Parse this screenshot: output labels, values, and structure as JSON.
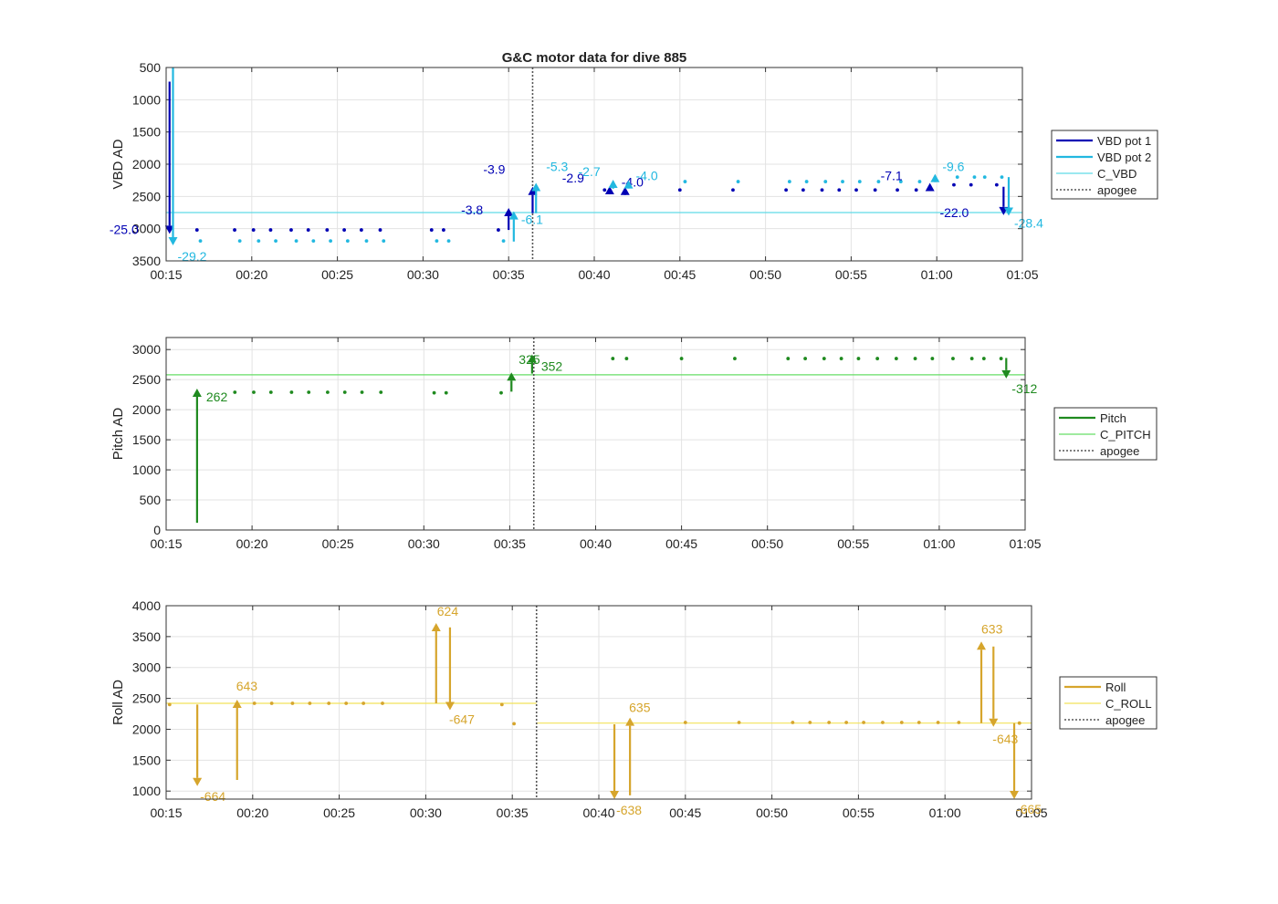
{
  "title": "G&C motor data for dive 885",
  "colors": {
    "vbd1": "#0000b4",
    "vbd2": "#22b8e0",
    "c_vbd": "#5fd9e6",
    "pitch": "#1f8a1f",
    "c_pitch": "#66dd66",
    "roll": "#d6a52c",
    "c_roll": "#f2e25a",
    "apogee": "#555555",
    "grid": "#e3e3e3"
  },
  "chart_data": [
    {
      "type": "line",
      "title": "G&C motor data for dive 885",
      "ylabel": "VBD AD",
      "xlabel": "",
      "xlim": [
        "00:15",
        "01:05"
      ],
      "ylim": [
        3500,
        500
      ],
      "y_reversed": true,
      "xticks": [
        "00:15",
        "00:20",
        "00:25",
        "00:30",
        "00:35",
        "00:40",
        "00:45",
        "00:50",
        "00:55",
        "01:00",
        "01:05"
      ],
      "yticks": [
        "500",
        "1000",
        "1500",
        "2000",
        "2500",
        "3000",
        "3500"
      ],
      "grid": true,
      "legend_position": "outside-right",
      "legend": [
        "VBD pot 1",
        "VBD pot 2",
        "C_VBD",
        "apogee"
      ],
      "apogee": "00:36.4",
      "reference_lines": [
        {
          "name": "C_VBD",
          "y": 2750
        }
      ],
      "series": [
        {
          "name": "VBD pot 1",
          "color_key": "vbd1",
          "x": [
            "00:16.8",
            "00:19.0",
            "00:20.1",
            "00:21.1",
            "00:22.3",
            "00:23.3",
            "00:24.4",
            "00:25.4",
            "00:26.4",
            "00:27.5",
            "00:30.5",
            "00:31.2",
            "00:34.4",
            "00:40.6",
            "00:45.0",
            "00:48.1",
            "00:51.2",
            "00:52.2",
            "00:53.3",
            "00:54.3",
            "00:55.3",
            "00:56.4",
            "00:57.7",
            "00:58.8",
            "01:01.0",
            "01:02.0",
            "01:03.5"
          ],
          "y": [
            3020,
            3020,
            3020,
            3020,
            3020,
            3020,
            3020,
            3020,
            3020,
            3020,
            3020,
            3020,
            3020,
            2400,
            2400,
            2400,
            2400,
            2400,
            2400,
            2400,
            2400,
            2400,
            2400,
            2400,
            2320,
            2320,
            2320
          ]
        },
        {
          "name": "VBD pot 2",
          "color_key": "vbd2",
          "x": [
            "00:17.0",
            "00:19.3",
            "00:20.4",
            "00:21.4",
            "00:22.6",
            "00:23.6",
            "00:24.6",
            "00:25.6",
            "00:26.7",
            "00:27.7",
            "00:30.8",
            "00:31.5",
            "00:34.7",
            "00:45.3",
            "00:48.4",
            "00:51.4",
            "00:52.4",
            "00:53.5",
            "00:54.5",
            "00:55.5",
            "00:56.6",
            "00:57.9",
            "00:59.0",
            "01:01.2",
            "01:02.2",
            "01:02.8",
            "01:03.8"
          ],
          "y": [
            3190,
            3190,
            3190,
            3190,
            3190,
            3190,
            3190,
            3190,
            3190,
            3190,
            3190,
            3190,
            3190,
            2270,
            2270,
            2270,
            2270,
            2270,
            2270,
            2270,
            2270,
            2270,
            2270,
            2200,
            2200,
            2200,
            2200
          ]
        }
      ],
      "arrows": [
        {
          "series": "VBD pot 1",
          "x": "00:15.2",
          "y_from": 720,
          "y_to": 3080,
          "label": "-25.0"
        },
        {
          "series": "VBD pot 2",
          "x": "00:15.4",
          "y_from": 500,
          "y_to": 3260,
          "label": "-29.2"
        },
        {
          "series": "VBD pot 1",
          "x": "00:35.0",
          "y_from": 3020,
          "y_to": 2680,
          "label": "-3.8"
        },
        {
          "series": "VBD pot 2",
          "x": "00:35.3",
          "y_from": 3200,
          "y_to": 2730,
          "label": "-6.1"
        },
        {
          "series": "VBD pot 1",
          "x": "00:36.4",
          "y_from": 2760,
          "y_to": 2350,
          "label": "-3.9"
        },
        {
          "series": "VBD pot 2",
          "x": "00:36.6",
          "y_from": 2760,
          "y_to": 2290,
          "label": "-5.3"
        },
        {
          "series": "VBD pot 1",
          "x": "00:40.9",
          "y_from": 2440,
          "y_to": 2340,
          "label": "-2.9"
        },
        {
          "series": "VBD pot 2",
          "x": "00:41.1",
          "y_from": 2380,
          "y_to": 2240,
          "label": "-2.7"
        },
        {
          "series": "VBD pot 1",
          "x": "00:41.8",
          "y_from": 2440,
          "y_to": 2350,
          "label": "-4.0"
        },
        {
          "series": "VBD pot 2",
          "x": "00:42.0",
          "y_from": 2340,
          "y_to": 2250,
          "label": "-4.0"
        },
        {
          "series": "VBD pot 1",
          "x": "00:59.6",
          "y_from": 2380,
          "y_to": 2290,
          "label": "-7.1"
        },
        {
          "series": "VBD pot 2",
          "x": "00:59.9",
          "y_from": 2280,
          "y_to": 2150,
          "label": "-9.6"
        },
        {
          "series": "VBD pot 1",
          "x": "01:03.9",
          "y_from": 2350,
          "y_to": 2790,
          "label": "-22.0"
        },
        {
          "series": "VBD pot 2",
          "x": "01:04.2",
          "y_from": 2200,
          "y_to": 2800,
          "label": "-28.4"
        }
      ]
    },
    {
      "type": "line",
      "ylabel": "Pitch AD",
      "xlabel": "",
      "xlim": [
        "00:15",
        "01:05"
      ],
      "ylim": [
        0,
        3200
      ],
      "xticks": [
        "00:15",
        "00:20",
        "00:25",
        "00:30",
        "00:35",
        "00:40",
        "00:45",
        "00:50",
        "00:55",
        "01:00",
        "01:05"
      ],
      "yticks": [
        "0",
        "500",
        "1000",
        "1500",
        "2000",
        "2500",
        "3000"
      ],
      "grid": true,
      "legend_position": "outside-right",
      "legend": [
        "Pitch",
        "C_PITCH",
        "apogee"
      ],
      "apogee": "00:36.4",
      "reference_lines": [
        {
          "name": "C_PITCH",
          "y": 2580
        }
      ],
      "series": [
        {
          "name": "Pitch",
          "color_key": "pitch",
          "x": [
            "00:19.0",
            "00:20.1",
            "00:21.1",
            "00:22.3",
            "00:23.3",
            "00:24.4",
            "00:25.4",
            "00:26.4",
            "00:27.5",
            "00:30.6",
            "00:31.3",
            "00:34.5",
            "00:41.0",
            "00:41.8",
            "00:45.0",
            "00:48.1",
            "00:51.2",
            "00:52.2",
            "00:53.3",
            "00:54.3",
            "00:55.3",
            "00:56.4",
            "00:57.5",
            "00:58.6",
            "00:59.6",
            "01:00.8",
            "01:01.9",
            "01:02.6",
            "01:03.6"
          ],
          "y": [
            2290,
            2290,
            2290,
            2290,
            2290,
            2290,
            2290,
            2290,
            2290,
            2280,
            2280,
            2280,
            2850,
            2850,
            2850,
            2850,
            2850,
            2850,
            2850,
            2850,
            2850,
            2850,
            2850,
            2850,
            2850,
            2850,
            2850,
            2850,
            2850
          ]
        }
      ],
      "arrows": [
        {
          "series": "Pitch",
          "x": "00:16.8",
          "y_from": 120,
          "y_to": 2350,
          "label": "262"
        },
        {
          "series": "Pitch",
          "x": "00:35.1",
          "y_from": 2300,
          "y_to": 2620,
          "label": "325"
        },
        {
          "series": "Pitch",
          "x": "00:36.3",
          "y_from": 2600,
          "y_to": 2920,
          "label": "352"
        },
        {
          "series": "Pitch",
          "x": "01:03.9",
          "y_from": 2860,
          "y_to": 2520,
          "label": "-312"
        }
      ]
    },
    {
      "type": "line",
      "ylabel": "Roll AD",
      "xlabel": "",
      "xlim": [
        "00:15",
        "01:05"
      ],
      "ylim": [
        870,
        4000
      ],
      "xticks": [
        "00:15",
        "00:20",
        "00:25",
        "00:30",
        "00:35",
        "00:40",
        "00:45",
        "00:50",
        "00:55",
        "01:00",
        "01:05"
      ],
      "yticks": [
        "1000",
        "1500",
        "2000",
        "2500",
        "3000",
        "3500",
        "4000"
      ],
      "grid": true,
      "legend_position": "outside-right",
      "legend": [
        "Roll",
        "C_ROLL",
        "apogee"
      ],
      "apogee": "00:36.4",
      "reference_lines": [
        {
          "name": "C_ROLL",
          "x_range": [
            "00:15",
            "00:36.4"
          ],
          "y": 2420
        },
        {
          "name": "C_ROLL",
          "x_range": [
            "00:36.4",
            "01:05"
          ],
          "y": 2100
        }
      ],
      "series": [
        {
          "name": "Roll",
          "color_key": "roll",
          "x": [
            "00:15.2",
            "00:20.1",
            "00:21.1",
            "00:22.3",
            "00:23.3",
            "00:24.4",
            "00:25.4",
            "00:26.4",
            "00:27.5",
            "00:34.4",
            "00:35.1",
            "00:45.0",
            "00:48.1",
            "00:51.2",
            "00:52.2",
            "00:53.3",
            "00:54.3",
            "00:55.3",
            "00:56.4",
            "00:57.5",
            "00:58.5",
            "00:59.6",
            "01:00.8",
            "01:04.3"
          ],
          "y": [
            2400,
            2420,
            2420,
            2420,
            2420,
            2420,
            2420,
            2420,
            2420,
            2400,
            2090,
            2110,
            2110,
            2110,
            2110,
            2110,
            2110,
            2110,
            2110,
            2110,
            2110,
            2110,
            2110,
            2100
          ]
        }
      ],
      "arrows": [
        {
          "series": "Roll",
          "x": "00:16.8",
          "y_from": 2400,
          "y_to": 1080,
          "label": "-664"
        },
        {
          "series": "Roll",
          "x": "00:19.1",
          "y_from": 1180,
          "y_to": 2480,
          "label": "643"
        },
        {
          "series": "Roll",
          "x": "00:30.6",
          "y_from": 2420,
          "y_to": 3720,
          "label": "624"
        },
        {
          "series": "Roll",
          "x": "00:31.4",
          "y_from": 3650,
          "y_to": 2310,
          "label": "-647"
        },
        {
          "series": "Roll",
          "x": "00:40.9",
          "y_from": 2080,
          "y_to": 870,
          "label": "-638"
        },
        {
          "series": "Roll",
          "x": "00:41.8",
          "y_from": 930,
          "y_to": 2190,
          "label": "635"
        },
        {
          "series": "Roll",
          "x": "01:02.1",
          "y_from": 2100,
          "y_to": 3420,
          "label": "633"
        },
        {
          "series": "Roll",
          "x": "01:02.8",
          "y_from": 3340,
          "y_to": 2040,
          "label": "-643"
        },
        {
          "series": "Roll",
          "x": "01:04.0",
          "y_from": 2100,
          "y_to": 870,
          "label": "-665"
        }
      ]
    }
  ]
}
